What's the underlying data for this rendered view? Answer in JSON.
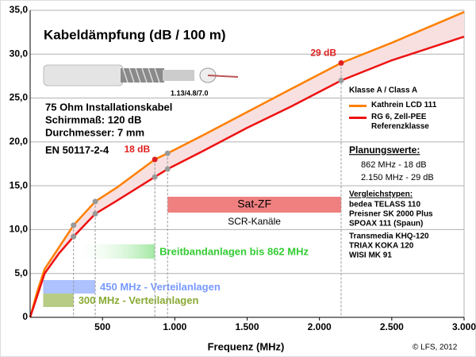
{
  "chart_data": {
    "type": "line",
    "title": "Kabeldämpfung (dB / 100 m)",
    "x_label": "Frequenz (MHz)",
    "x": [
      0,
      50,
      100,
      200,
      300,
      450,
      600,
      862,
      950,
      1200,
      1500,
      1800,
      2150,
      2500,
      3000
    ],
    "series": [
      {
        "name": "Kathrein  LCD 111",
        "color": "#ff7f00",
        "values": [
          0,
          3.0,
          5.5,
          8.0,
          10.5,
          13.2,
          14.8,
          18.0,
          18.7,
          20.8,
          23.4,
          26.0,
          29.0,
          31.3,
          34.8
        ],
        "value_labels": [
          null,
          null,
          null,
          null,
          null,
          null,
          null,
          "18 dB",
          null,
          null,
          null,
          null,
          "29 dB",
          null,
          null
        ]
      },
      {
        "name": "RG 6, Zell-PEE Referenzklasse",
        "color": "#ee1111",
        "values": [
          0,
          2.5,
          5.0,
          7.3,
          9.2,
          11.8,
          13.3,
          16.0,
          16.9,
          19.0,
          21.6,
          24.0,
          27.0,
          29.3,
          32.0
        ]
      }
    ],
    "fill_between": "#f8e0e0",
    "marker_x": [
      300,
      450,
      862,
      950,
      2150
    ],
    "xlim": [
      0,
      3000
    ],
    "xticks": [
      500,
      {
        "value": 1000,
        "label": "1.000"
      },
      {
        "value": 1500,
        "label": "1.500"
      },
      {
        "value": 2000,
        "label": "2.000"
      },
      {
        "value": 2500,
        "label": "2.500"
      },
      {
        "value": 3000,
        "label": "3.000"
      }
    ],
    "ylim": [
      0,
      35
    ],
    "yticks": [
      0,
      {
        "value": 5,
        "label": "5,0"
      },
      {
        "value": 10,
        "label": "10,0"
      },
      {
        "value": 15,
        "label": "15,0"
      },
      {
        "value": 20,
        "label": "20,0"
      },
      {
        "value": 25,
        "label": "25,0"
      },
      {
        "value": 30,
        "label": "30,0"
      },
      {
        "value": 35,
        "label": "35,0"
      }
    ],
    "grid": true,
    "bands": [
      {
        "label": "Sat-ZF",
        "sublabel": "SCR-Kanäle",
        "range": [
          950,
          2150
        ],
        "color": "#f08080"
      },
      {
        "label": "Breitbandanlagen bis 862 MHz",
        "range": [
          300,
          862
        ],
        "color": "#33cc33"
      },
      {
        "label": "450 MHz - Verteilanlagen",
        "range": [
          90,
          450
        ],
        "color": "#7799ff"
      },
      {
        "label": "300 MHz - Verteilanlagen",
        "range": [
          90,
          300
        ],
        "color": "#88aa33"
      }
    ],
    "annotations": {
      "cable_code": "1.13/4.8/7.0",
      "specs": [
        "75 Ohm Installationskabel",
        "Schirmmaß: 120 dB",
        "Durchmesser: 7 mm"
      ],
      "norm": "EN 50117-2-4",
      "class": "Klasse A / Class A",
      "planning_title": "Planungswerte:",
      "planning": [
        "862 MHz - 18 dB",
        "2.150 MHz - 29 dB"
      ],
      "compare_title": "Vergleichstypen:",
      "compare": [
        "bedea TELASS 110",
        "Preisner SK 2000 Plus",
        "SPOAX 111 (Spaun)",
        "Transmedia KHQ-120",
        "TRIAX KOKA 120",
        "WISI MK 91"
      ],
      "copyright": "© LFS, 2012"
    }
  }
}
